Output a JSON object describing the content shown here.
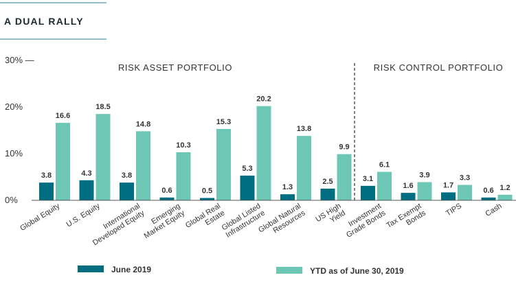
{
  "chart_data": {
    "type": "bar",
    "title": "A DUAL RALLY",
    "ylim": [
      0,
      30
    ],
    "yticks": [
      "0%",
      "10%",
      "20%",
      "30% —"
    ],
    "sections": [
      "RISK ASSET PORTFOLIO",
      "RISK CONTROL PORTFOLIO"
    ],
    "categories": [
      [
        "Global Equity"
      ],
      [
        "U.S. Equity"
      ],
      [
        "International",
        "Developed Equity"
      ],
      [
        "Emerging",
        "Market Equity"
      ],
      [
        "Global Real",
        "Estate"
      ],
      [
        "Global Listed",
        "Infrastructure"
      ],
      [
        "Global Natural",
        "Resources"
      ],
      [
        "US High",
        "Yield"
      ],
      [
        "Investment",
        "Grade Bonds"
      ],
      [
        "Tax Exempt",
        "Bonds"
      ],
      [
        "TIPS"
      ],
      [
        "Cash"
      ]
    ],
    "series": [
      {
        "name": "June 2019",
        "color": "#006e82",
        "values": [
          3.8,
          4.3,
          3.8,
          0.6,
          0.5,
          5.3,
          1.3,
          2.5,
          3.1,
          1.6,
          1.7,
          0.6
        ],
        "labels": [
          "3.8",
          "4.3",
          "3.8",
          "0.6",
          "0.5",
          "5.3",
          "1.3",
          "2.5",
          "3.1",
          "1.6",
          "1.7",
          "0.6"
        ]
      },
      {
        "name": "YTD as of June 30, 2019",
        "color": "#6cc7b5",
        "values": [
          16.6,
          18.5,
          14.8,
          10.3,
          15.3,
          20.2,
          13.8,
          9.9,
          6.1,
          3.9,
          3.3,
          1.2
        ],
        "labels": [
          "16.6",
          "18.5",
          "14.8",
          "10.3",
          "15.3",
          "20.2",
          "13.8",
          "9.9",
          "6.1",
          "3.9",
          "3.3",
          "1.2"
        ]
      }
    ],
    "legend": "bottom",
    "grid": false
  }
}
